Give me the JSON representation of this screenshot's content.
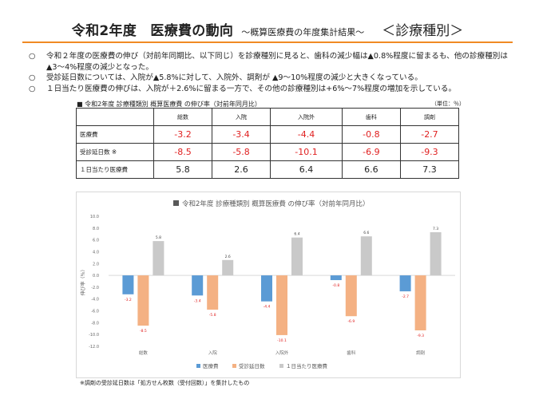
{
  "header": {
    "title": "令和2年度　医療費の動向",
    "subtitle": "～概算医療費の年度集計結果～",
    "tag": "＜診療種別＞"
  },
  "bullets": [
    {
      "marker": "○",
      "text": "令和２年度の医療費の伸び（対前年同期比、以下同じ）を診療種別に見ると、歯科の減少幅は▲0.8%程度に留まるも、他の診療種別は▲3～4%程度の減少となった。"
    },
    {
      "marker": "○",
      "text": "受診延日数については、入院が▲5.8%に対して、入院外、調剤が ▲9～10%程度の減少と大きくなっている。"
    },
    {
      "marker": "○",
      "text": "１日当たり医療費の伸びは、入院が＋2.6%に留まる一方で、その他の診療種別は+6%～7%程度の増加を示している。"
    }
  ],
  "table": {
    "caption": "■ 令和2年度 診療種類別 概算医療費 の伸び率（対前年同月比）",
    "unit": "（単位：％）",
    "headers": [
      "総数",
      "入院",
      "入院外",
      "歯科",
      "調剤"
    ],
    "rows": [
      {
        "label": "医療費",
        "values": [
          "-3.2",
          "-3.4",
          "-4.4",
          "-0.8",
          "-2.7"
        ]
      },
      {
        "label": "受診延日数 ※",
        "values": [
          "-8.5",
          "-5.8",
          "-10.1",
          "-6.9",
          "-9.3"
        ]
      },
      {
        "label": "１日当たり医療費",
        "values": [
          "5.8",
          "2.6",
          "6.4",
          "6.6",
          "7.3"
        ]
      }
    ]
  },
  "chart_data": {
    "type": "bar",
    "title": "令和2年度 診療種類別 概算医療費 の伸び率（対前年同月比）",
    "categories": [
      "総数",
      "入院",
      "入院外",
      "歯科",
      "調剤"
    ],
    "series": [
      {
        "name": "医療費",
        "values": [
          -3.2,
          -3.4,
          -4.4,
          -0.8,
          -2.7
        ],
        "color": "#5b9bd5"
      },
      {
        "name": "受診延日数",
        "values": [
          -8.5,
          -5.8,
          -10.1,
          -6.9,
          -9.3
        ],
        "color": "#f4b183"
      },
      {
        "name": "１日当たり医療費",
        "values": [
          5.8,
          2.6,
          6.4,
          6.6,
          7.3
        ],
        "color": "#c9c9c9"
      }
    ],
    "ylabel": "伸び率（％）",
    "ylim": [
      -12,
      10
    ],
    "yticks": [
      10.0,
      8.0,
      6.0,
      4.0,
      2.0,
      0.0,
      -2.0,
      -4.0,
      -6.0,
      -8.0,
      -10.0,
      -12.0
    ],
    "ytick_labels": [
      "10.0",
      "8.0",
      "6.0",
      "4.0",
      "2.0",
      "0.0",
      "-2.0",
      "-4.0",
      "-6.0",
      "-8.0",
      "-10.0",
      "-12.0"
    ],
    "legend_position": "bottom",
    "grid": false,
    "label_color_negative": "#e02020",
    "label_color_positive": "#444444"
  },
  "footnote": "※調剤の受診延日数は「処方せん枚数（受付回数）」を集計したもの"
}
